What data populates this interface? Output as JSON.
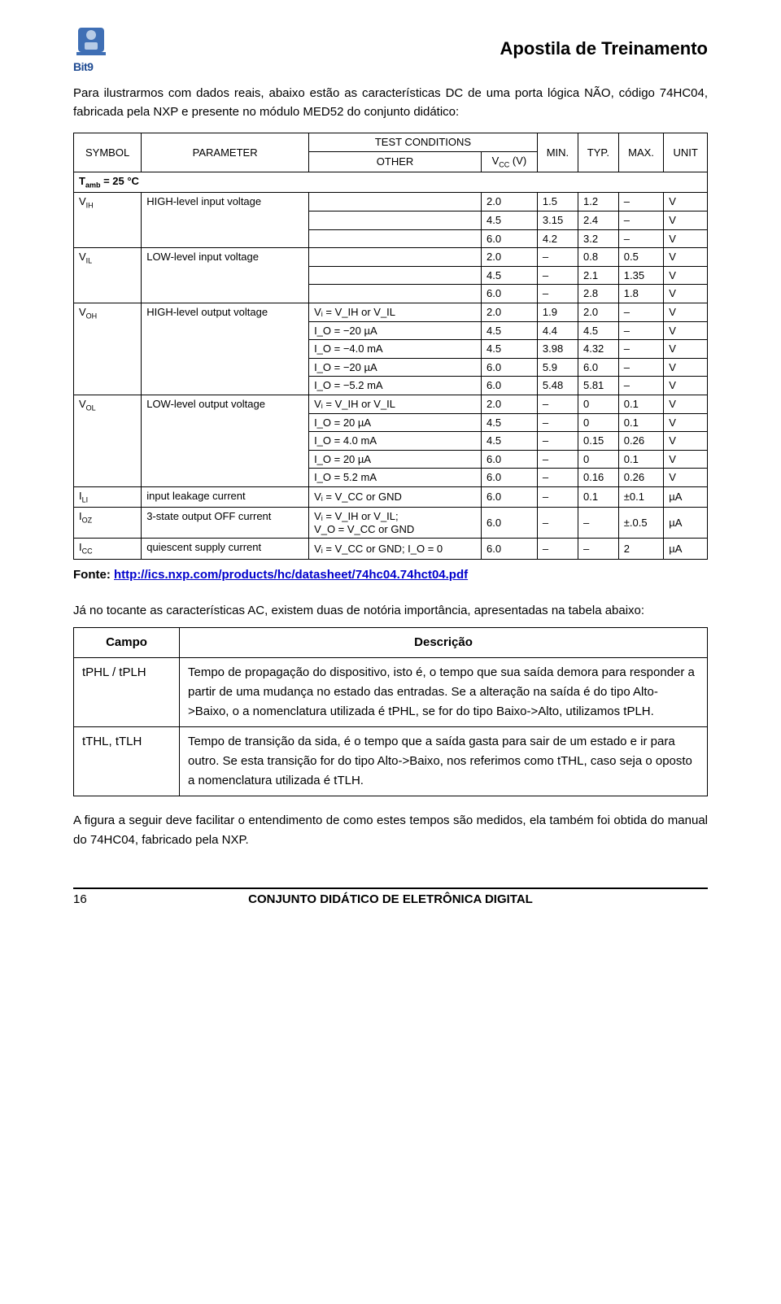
{
  "header": {
    "logo_brand": "Bit9",
    "doc_title": "Apostila de Treinamento"
  },
  "intro": "Para ilustrarmos com dados reais, abaixo estão as características DC de uma porta lógica NÃO, código 74HC04, fabricada pela NXP e presente no módulo MED52 do conjunto didático:",
  "datasheet": {
    "headers": {
      "symbol": "SYMBOL",
      "parameter": "PARAMETER",
      "test_conditions": "TEST CONDITIONS",
      "other": "OTHER",
      "vcc": "V",
      "vcc_sub": "CC",
      "vcc_unit": " (V)",
      "min": "MIN.",
      "typ": "TYP.",
      "max": "MAX.",
      "unit": "UNIT"
    },
    "tamb": "T",
    "tamb_sub": "amb",
    "tamb_val": " = 25 °C",
    "rows": [
      {
        "sym": "V",
        "sub": "IH",
        "param": "HIGH-level input voltage",
        "cond": "",
        "lines": [
          {
            "vcc": "2.0",
            "min": "1.5",
            "typ": "1.2",
            "max": "–",
            "unit": "V"
          },
          {
            "vcc": "4.5",
            "min": "3.15",
            "typ": "2.4",
            "max": "–",
            "unit": "V"
          },
          {
            "vcc": "6.0",
            "min": "4.2",
            "typ": "3.2",
            "max": "–",
            "unit": "V"
          }
        ]
      },
      {
        "sym": "V",
        "sub": "IL",
        "param": "LOW-level input voltage",
        "cond": "",
        "lines": [
          {
            "vcc": "2.0",
            "min": "–",
            "typ": "0.8",
            "max": "0.5",
            "unit": "V"
          },
          {
            "vcc": "4.5",
            "min": "–",
            "typ": "2.1",
            "max": "1.35",
            "unit": "V"
          },
          {
            "vcc": "6.0",
            "min": "–",
            "typ": "2.8",
            "max": "1.8",
            "unit": "V"
          }
        ]
      },
      {
        "sym": "V",
        "sub": "OH",
        "param": "HIGH-level output voltage",
        "cond": "Vᵢ = V_IH or V_IL",
        "lines": [
          {
            "other": "I_O = −20 µA",
            "vcc": "2.0",
            "min": "1.9",
            "typ": "2.0",
            "max": "–",
            "unit": "V"
          },
          {
            "other": "I_O = −20 µA",
            "vcc": "4.5",
            "min": "4.4",
            "typ": "4.5",
            "max": "–",
            "unit": "V"
          },
          {
            "other": "I_O = −4.0 mA",
            "vcc": "4.5",
            "min": "3.98",
            "typ": "4.32",
            "max": "–",
            "unit": "V"
          },
          {
            "other": "I_O = −20 µA",
            "vcc": "6.0",
            "min": "5.9",
            "typ": "6.0",
            "max": "–",
            "unit": "V"
          },
          {
            "other": "I_O = −5.2 mA",
            "vcc": "6.0",
            "min": "5.48",
            "typ": "5.81",
            "max": "–",
            "unit": "V"
          }
        ]
      },
      {
        "sym": "V",
        "sub": "OL",
        "param": "LOW-level output voltage",
        "cond": "Vᵢ = V_IH or V_IL",
        "lines": [
          {
            "other": "I_O = 20 µA",
            "vcc": "2.0",
            "min": "–",
            "typ": "0",
            "max": "0.1",
            "unit": "V"
          },
          {
            "other": "I_O = 20 µA",
            "vcc": "4.5",
            "min": "–",
            "typ": "0",
            "max": "0.1",
            "unit": "V"
          },
          {
            "other": "I_O = 4.0 mA",
            "vcc": "4.5",
            "min": "–",
            "typ": "0.15",
            "max": "0.26",
            "unit": "V"
          },
          {
            "other": "I_O = 20 µA",
            "vcc": "6.0",
            "min": "–",
            "typ": "0",
            "max": "0.1",
            "unit": "V"
          },
          {
            "other": "I_O = 5.2 mA",
            "vcc": "6.0",
            "min": "–",
            "typ": "0.16",
            "max": "0.26",
            "unit": "V"
          }
        ]
      },
      {
        "sym": "I",
        "sub": "LI",
        "param": "input leakage current",
        "cond": "Vᵢ = V_CC or GND",
        "lines": [
          {
            "vcc": "6.0",
            "min": "–",
            "typ": "0.1",
            "max": "±0.1",
            "unit": "µA"
          }
        ]
      },
      {
        "sym": "I",
        "sub": "OZ",
        "param": "3-state output OFF current",
        "cond": "Vᵢ = V_IH or V_IL;\nV_O = V_CC or GND",
        "lines": [
          {
            "vcc": "6.0",
            "min": "–",
            "typ": "–",
            "max": "±.0.5",
            "unit": "µA"
          }
        ]
      },
      {
        "sym": "I",
        "sub": "CC",
        "param": "quiescent supply current",
        "cond": "Vᵢ = V_CC or GND; I_O = 0",
        "lines": [
          {
            "vcc": "6.0",
            "min": "–",
            "typ": "–",
            "max": "2",
            "unit": "µA"
          }
        ]
      }
    ]
  },
  "fonte_label": "Fonte: ",
  "fonte_url": "http://ics.nxp.com/products/hc/datasheet/74hc04.74hct04.pdf",
  "ac_intro": "Já no tocante as características AC, existem duas de notória importância, apresentadas na tabela abaixo:",
  "campos": {
    "h_campo": "Campo",
    "h_desc": "Descrição",
    "rows": [
      {
        "campo": "tPHL / tPLH",
        "desc": "Tempo de propagação do dispositivo, isto é, o tempo que sua saída demora para responder a partir de uma mudança no estado das entradas. Se a alteração na saída é do tipo Alto->Baixo, o a nomenclatura utilizada é tPHL, se for do tipo Baixo->Alto, utilizamos tPLH."
      },
      {
        "campo": "tTHL, tTLH",
        "desc": "Tempo de transição da sida, é o tempo que a saída gasta para sair de um estado e ir para outro. Se esta transição for do tipo Alto->Baixo, nos referimos como tTHL, caso seja o oposto a nomenclatura utilizada é tTLH."
      }
    ]
  },
  "closing": "A figura a seguir deve facilitar o entendimento de como estes tempos são medidos, ela também foi obtida do manual do 74HC04, fabricado pela NXP.",
  "footer": {
    "page": "16",
    "title": "CONJUNTO DIDÁTICO DE ELETRÔNICA DIGITAL"
  },
  "colors": {
    "logo_blue": "#1e4a92",
    "link": "#0000cc",
    "border": "#000000",
    "text": "#000000",
    "bg": "#ffffff"
  }
}
